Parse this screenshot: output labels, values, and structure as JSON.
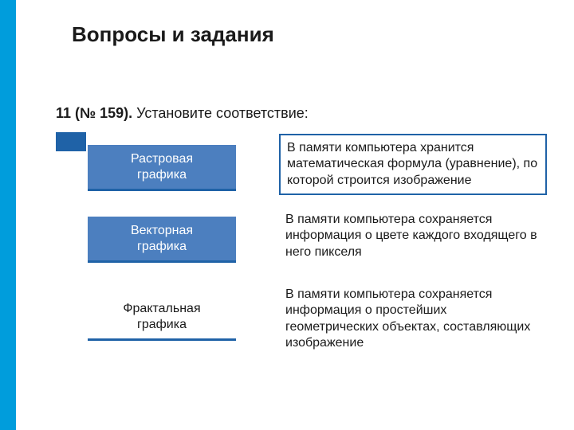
{
  "title": "Вопросы и задания",
  "question": {
    "number": "11 (№ 159).",
    "text": " Установите соответствие:"
  },
  "left": [
    {
      "label": "Растровая\nграфика",
      "style": "solid"
    },
    {
      "label": "Векторная\nграфика",
      "style": "solid"
    },
    {
      "label": "Фрактальная\nграфика",
      "style": "outline"
    }
  ],
  "right": [
    {
      "text": "В памяти компьютера хранится математическая формула (уравнение), по которой строится изображение",
      "framed": true
    },
    {
      "text": "В памяти компьютера сохраняется информация о цвете каждого входящего в него пикселя",
      "framed": false
    },
    {
      "text": "В памяти компьютера сохраняется информация о простейших геометрических объектах, составляющих изображение",
      "framed": false
    }
  ],
  "colors": {
    "accent_bar": "#009ddc",
    "primary": "#1f62a7",
    "box_fill": "#4c7fbf",
    "text": "#1a1a1a",
    "bg": "#ffffff"
  }
}
